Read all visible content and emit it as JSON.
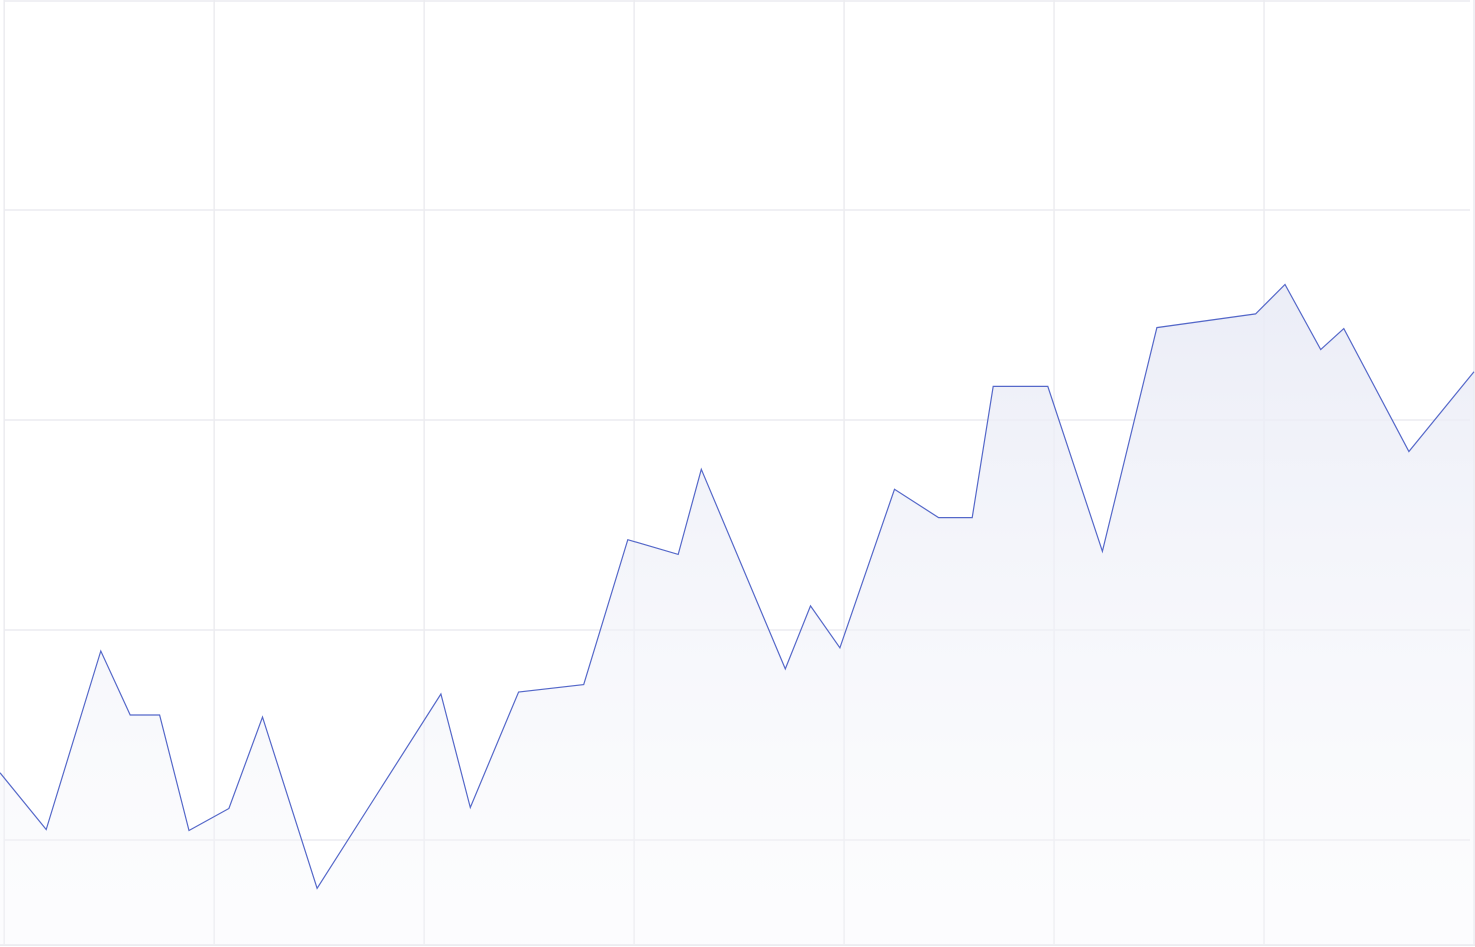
{
  "chart_data": {
    "type": "area",
    "x": [
      -0.02,
      0.2,
      0.46,
      0.6,
      0.74,
      0.88,
      1.07,
      1.23,
      1.49,
      2.08,
      2.22,
      2.45,
      2.76,
      2.97,
      3.21,
      3.32,
      3.72,
      3.84,
      3.98,
      4.24,
      4.45,
      4.61,
      4.71,
      4.97,
      5.23,
      5.49,
      5.96,
      6.1,
      6.27,
      6.38,
      6.69,
      7.0
    ],
    "series": [
      {
        "color": "#5568c9",
        "values": [
          1.64,
          1.1,
          2.8,
          2.19,
          2.19,
          1.09,
          1.3,
          2.17,
          0.54,
          2.39,
          1.31,
          2.41,
          2.48,
          3.86,
          3.72,
          4.53,
          2.63,
          3.23,
          2.83,
          4.34,
          4.07,
          4.07,
          5.32,
          5.32,
          3.75,
          5.88,
          6.01,
          6.29,
          5.67,
          5.87,
          4.7,
          5.46
        ]
      }
    ],
    "xlim": [
      -0.02,
      7.0
    ],
    "xticks": [
      0,
      1,
      2,
      3,
      4,
      5,
      6,
      7
    ],
    "ylim": [
      0,
      9
    ],
    "yticks": [
      1,
      3,
      5,
      7,
      9
    ],
    "grid": true
  }
}
